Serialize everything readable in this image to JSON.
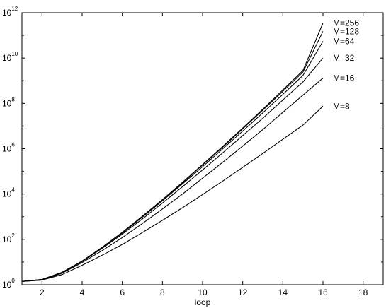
{
  "chart_data": {
    "type": "line",
    "title": "",
    "xlabel": "loop",
    "ylabel": "",
    "xlim": [
      1,
      19
    ],
    "ylim": [
      1,
      1000000000000.0
    ],
    "yscale": "log",
    "grid": false,
    "legend": "none",
    "x_ticks": [
      2,
      4,
      6,
      8,
      10,
      12,
      14,
      16,
      18
    ],
    "y_ticks": [
      {
        "value": 1,
        "base": "10",
        "exp": "0"
      },
      {
        "value": 100,
        "base": "10",
        "exp": "2"
      },
      {
        "value": 10000,
        "base": "10",
        "exp": "4"
      },
      {
        "value": 1000000,
        "base": "10",
        "exp": "6"
      },
      {
        "value": 100000000,
        "base": "10",
        "exp": "8"
      },
      {
        "value": 10000000000,
        "base": "10",
        "exp": "10"
      },
      {
        "value": 1000000000000,
        "base": "10",
        "exp": "12"
      }
    ],
    "x": [
      1,
      2,
      3,
      4,
      5,
      6,
      7,
      8,
      9,
      10,
      11,
      12,
      13,
      14,
      15,
      16
    ],
    "series": [
      {
        "name": "M=8",
        "label": "M=8",
        "values": [
          1.4,
          1.6,
          2.8,
          7.2,
          20,
          60,
          200,
          690,
          2500,
          9500,
          37000,
          150000,
          620000,
          2600000,
          11000000,
          75000000
        ]
      },
      {
        "name": "M=16",
        "label": "M=16",
        "values": [
          1.4,
          1.6,
          3.2,
          9.5,
          32,
          120,
          500,
          2200,
          10000,
          50000,
          250000,
          1300000,
          7000000,
          40000000,
          230000000,
          1300000000
        ]
      },
      {
        "name": "M=32",
        "label": "M=32",
        "values": [
          1.4,
          1.7,
          3.4,
          10.5,
          40,
          170,
          800,
          4000,
          21000,
          115000,
          650000,
          3800000,
          22000000,
          140000000,
          880000000,
          10000000000
        ]
      },
      {
        "name": "M=64",
        "label": "M=64",
        "values": [
          1.4,
          1.7,
          3.5,
          11,
          43,
          190,
          950,
          5000,
          28000,
          160000,
          970000,
          6000000,
          38000000,
          250000000,
          1700000000,
          55000000000
        ]
      },
      {
        "name": "M=128",
        "label": "M=128",
        "values": [
          1.4,
          1.7,
          3.5,
          11,
          44,
          200,
          1000,
          5500,
          31000,
          190000,
          1150000,
          7500000,
          50000000,
          340000000,
          2400000000,
          150000000000
        ]
      },
      {
        "name": "M=256",
        "label": "M=256",
        "values": [
          1.4,
          1.7,
          3.5,
          11,
          45,
          205,
          1050,
          5700,
          33000,
          200000,
          1250000,
          8200000,
          55000000,
          390000000,
          2800000000,
          350000000000
        ]
      }
    ]
  }
}
